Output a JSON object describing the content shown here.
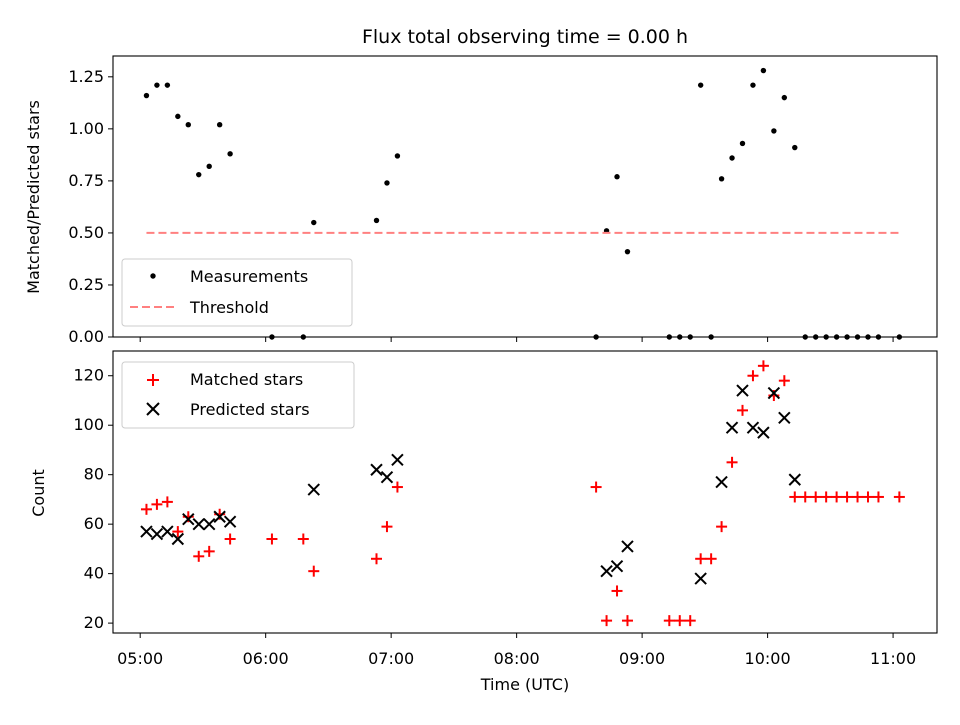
{
  "title": "Flux total observing time = 0.00 h",
  "chart_data": [
    {
      "type": "scatter",
      "ylabel": "Matched/Predicted stars",
      "xlabel": "",
      "xlim": [
        "04:47",
        "11:21"
      ],
      "ylim": [
        0,
        1.35
      ],
      "yticks": [
        0,
        0.25,
        0.5,
        0.75,
        1.0,
        1.25
      ],
      "ytick_labels": [
        "0.00",
        "0.25",
        "0.50",
        "0.75",
        "1.00",
        "1.25"
      ],
      "legend_position": "lower-left",
      "series": [
        {
          "name": "Measurements",
          "marker": "dot",
          "color": "#000000",
          "points": [
            [
              "05:03",
              1.16
            ],
            [
              "05:08",
              1.21
            ],
            [
              "05:13",
              1.21
            ],
            [
              "05:18",
              1.06
            ],
            [
              "05:23",
              1.02
            ],
            [
              "05:28",
              0.78
            ],
            [
              "05:33",
              0.82
            ],
            [
              "05:38",
              1.02
            ],
            [
              "05:43",
              0.88
            ],
            [
              "06:03",
              0.0
            ],
            [
              "06:18",
              0.0
            ],
            [
              "06:23",
              0.55
            ],
            [
              "06:53",
              0.56
            ],
            [
              "06:58",
              0.74
            ],
            [
              "07:03",
              0.87
            ],
            [
              "08:38",
              0.0
            ],
            [
              "08:43",
              0.51
            ],
            [
              "08:48",
              0.77
            ],
            [
              "08:53",
              0.41
            ],
            [
              "09:13",
              0.0
            ],
            [
              "09:18",
              0.0
            ],
            [
              "09:23",
              0.0
            ],
            [
              "09:28",
              1.21
            ],
            [
              "09:33",
              0.0
            ],
            [
              "09:38",
              0.76
            ],
            [
              "09:43",
              0.86
            ],
            [
              "09:48",
              0.93
            ],
            [
              "09:53",
              1.21
            ],
            [
              "09:58",
              1.28
            ],
            [
              "10:03",
              0.99
            ],
            [
              "10:08",
              1.15
            ],
            [
              "10:13",
              0.91
            ],
            [
              "10:18",
              0.0
            ],
            [
              "10:23",
              0.0
            ],
            [
              "10:28",
              0.0
            ],
            [
              "10:33",
              0.0
            ],
            [
              "10:38",
              0.0
            ],
            [
              "10:43",
              0.0
            ],
            [
              "10:48",
              0.0
            ],
            [
              "10:53",
              0.0
            ],
            [
              "11:03",
              0.0
            ]
          ]
        },
        {
          "name": "Threshold",
          "type": "line",
          "style": "dashed",
          "color": "#ff8080",
          "x": [
            "05:03",
            "11:03"
          ],
          "values": [
            0.5,
            0.5
          ]
        }
      ]
    },
    {
      "type": "scatter",
      "ylabel": "Count",
      "xlabel": "Time (UTC)",
      "xlim": [
        "04:47",
        "11:21"
      ],
      "ylim": [
        16,
        130
      ],
      "yticks": [
        20,
        40,
        60,
        80,
        100,
        120
      ],
      "ytick_labels": [
        "20",
        "40",
        "60",
        "80",
        "100",
        "120"
      ],
      "xticks": [
        "05:00",
        "06:00",
        "07:00",
        "08:00",
        "09:00",
        "10:00",
        "11:00"
      ],
      "legend_position": "upper-left",
      "series": [
        {
          "name": "Matched stars",
          "marker": "plus",
          "color": "#ff0000",
          "points": [
            [
              "05:03",
              66
            ],
            [
              "05:08",
              68
            ],
            [
              "05:13",
              69
            ],
            [
              "05:18",
              57
            ],
            [
              "05:23",
              63
            ],
            [
              "05:28",
              47
            ],
            [
              "05:33",
              49
            ],
            [
              "05:38",
              64
            ],
            [
              "05:43",
              54
            ],
            [
              "06:03",
              54
            ],
            [
              "06:18",
              54
            ],
            [
              "06:23",
              41
            ],
            [
              "06:53",
              46
            ],
            [
              "06:58",
              59
            ],
            [
              "07:03",
              75
            ],
            [
              "08:38",
              75
            ],
            [
              "08:43",
              21
            ],
            [
              "08:48",
              33
            ],
            [
              "08:53",
              21
            ],
            [
              "09:13",
              21
            ],
            [
              "09:18",
              21
            ],
            [
              "09:23",
              21
            ],
            [
              "09:28",
              46
            ],
            [
              "09:33",
              46
            ],
            [
              "09:38",
              59
            ],
            [
              "09:43",
              85
            ],
            [
              "09:48",
              106
            ],
            [
              "09:53",
              120
            ],
            [
              "09:58",
              124
            ],
            [
              "10:03",
              112
            ],
            [
              "10:08",
              118
            ],
            [
              "10:13",
              71
            ],
            [
              "10:18",
              71
            ],
            [
              "10:23",
              71
            ],
            [
              "10:28",
              71
            ],
            [
              "10:33",
              71
            ],
            [
              "10:38",
              71
            ],
            [
              "10:43",
              71
            ],
            [
              "10:48",
              71
            ],
            [
              "10:53",
              71
            ],
            [
              "11:03",
              71
            ]
          ]
        },
        {
          "name": "Predicted stars",
          "marker": "x",
          "color": "#000000",
          "points": [
            [
              "05:03",
              57
            ],
            [
              "05:08",
              56
            ],
            [
              "05:13",
              57
            ],
            [
              "05:18",
              54
            ],
            [
              "05:23",
              62
            ],
            [
              "05:28",
              60
            ],
            [
              "05:33",
              60
            ],
            [
              "05:38",
              63
            ],
            [
              "05:43",
              61
            ],
            [
              "06:23",
              74
            ],
            [
              "06:53",
              82
            ],
            [
              "06:58",
              79
            ],
            [
              "07:03",
              86
            ],
            [
              "08:43",
              41
            ],
            [
              "08:48",
              43
            ],
            [
              "08:53",
              51
            ],
            [
              "09:28",
              38
            ],
            [
              "09:38",
              77
            ],
            [
              "09:43",
              99
            ],
            [
              "09:48",
              114
            ],
            [
              "09:53",
              99
            ],
            [
              "09:58",
              97
            ],
            [
              "10:03",
              113
            ],
            [
              "10:08",
              103
            ],
            [
              "10:13",
              78
            ]
          ]
        }
      ]
    }
  ]
}
